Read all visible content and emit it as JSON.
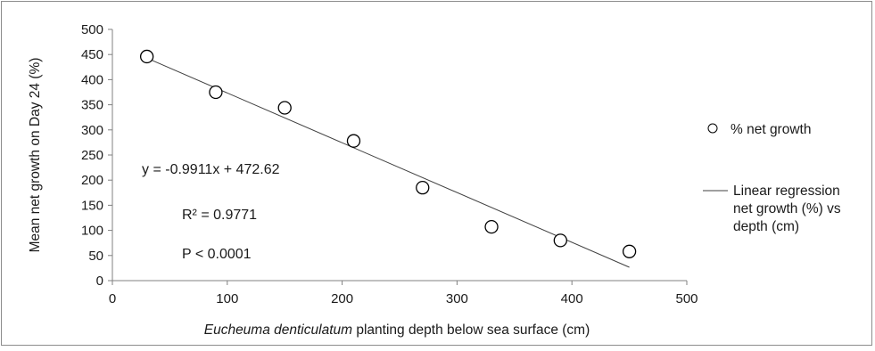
{
  "chart_data": {
    "type": "scatter",
    "xlabel_italic": "Eucheuma denticulatum",
    "xlabel_rest": " planting depth below sea surface (cm)",
    "ylabel": "Mean net growth on Day 24 (%)",
    "xlim": [
      0,
      500
    ],
    "ylim": [
      0,
      500
    ],
    "x_ticks": [
      "0",
      "100",
      "200",
      "300",
      "400",
      "500"
    ],
    "y_ticks": [
      "0",
      "50",
      "100",
      "150",
      "200",
      "250",
      "300",
      "350",
      "400",
      "450",
      "500"
    ],
    "grid": false,
    "legend_position": "right",
    "series": [
      {
        "name": "% net growth",
        "marker": "open-circle",
        "x": [
          30,
          90,
          150,
          210,
          270,
          330,
          390,
          450
        ],
        "y": [
          446,
          375,
          344,
          278,
          185,
          107,
          80,
          58
        ]
      }
    ],
    "regression": {
      "name": "Linear regression net growth (%) vs depth (cm)",
      "legend_lines": [
        "Linear regression",
        "net growth (%) vs",
        "depth (cm)"
      ],
      "slope": -0.9911,
      "intercept": 472.62,
      "x_range": [
        30,
        450
      ]
    },
    "annotations": {
      "equation": "y = -0.9911x + 472.62",
      "r2": "R² = 0.9771",
      "p": "P < 0.0001"
    },
    "colors": {
      "marker_stroke": "#000000",
      "line": "#404040",
      "axis": "#808080"
    }
  }
}
